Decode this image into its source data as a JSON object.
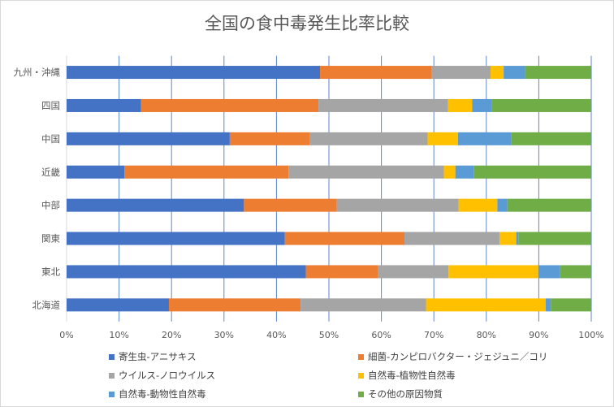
{
  "chart_data": {
    "type": "bar",
    "orientation": "horizontal",
    "stacked": "percent",
    "title": "全国の食中毒発生比率比較",
    "categories": [
      "九州・沖縄",
      "四国",
      "中国",
      "近畿",
      "中部",
      "関東",
      "東北",
      "北海道"
    ],
    "xlim": [
      0,
      100
    ],
    "xticks": [
      "0%",
      "10%",
      "20%",
      "30%",
      "40%",
      "50%",
      "60%",
      "70%",
      "80%",
      "90%",
      "100%"
    ],
    "grid": true,
    "legend_position": "bottom",
    "series": [
      {
        "name": "寄生虫-アニサキス",
        "color": "#4472C4",
        "values": [
          48.3,
          14.2,
          31.1,
          11.0,
          33.8,
          41.6,
          45.6,
          19.5
        ]
      },
      {
        "name": "細菌-カンピロバクター・ジェジュニ／コリ",
        "color": "#ED7D31",
        "values": [
          21.3,
          33.8,
          15.3,
          31.3,
          17.7,
          22.8,
          13.8,
          25.1
        ]
      },
      {
        "name": "ウイルス-ノロウイルス",
        "color": "#A5A5A5",
        "values": [
          11.2,
          24.7,
          22.4,
          29.6,
          23.2,
          18.1,
          13.4,
          23.9
        ]
      },
      {
        "name": "自然毒-植物性自然毒",
        "color": "#FFC000",
        "values": [
          2.5,
          4.6,
          5.8,
          2.2,
          7.4,
          3.2,
          17.1,
          22.8
        ]
      },
      {
        "name": "自然毒-動物性自然毒",
        "color": "#5B9BD5",
        "values": [
          4.1,
          3.8,
          10.1,
          3.5,
          1.9,
          0.4,
          4.1,
          1.0
        ]
      },
      {
        "name": "その他の原因物質",
        "color": "#70AD47",
        "values": [
          12.6,
          18.9,
          15.3,
          22.4,
          16.0,
          13.9,
          6.0,
          7.7
        ]
      }
    ]
  }
}
